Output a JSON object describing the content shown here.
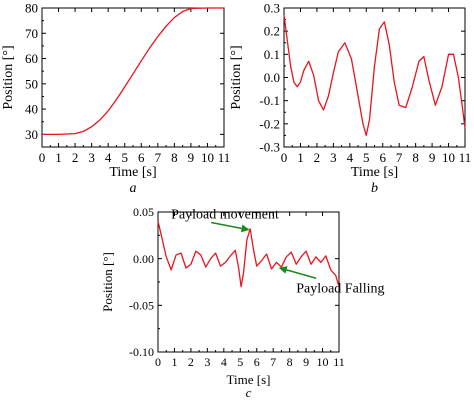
{
  "colors": {
    "curve": "#e8141e",
    "annotation_text": "#1a1ad6",
    "annotation_arrow": "#1a8a1a",
    "axes": "#000000"
  },
  "chart_data": [
    {
      "id": "a",
      "type": "line",
      "caption": "a",
      "xlabel": "Time [s]",
      "ylabel": "Position [°]",
      "xlim": [
        0,
        11
      ],
      "ylim": [
        25,
        80
      ],
      "xticks": [
        0,
        1,
        2,
        3,
        4,
        5,
        6,
        7,
        8,
        9,
        10,
        11
      ],
      "yticks": [
        30,
        40,
        50,
        60,
        70,
        80
      ],
      "ytick_labels": [
        "30",
        "40",
        "50",
        "60",
        "70",
        "80"
      ],
      "series": [
        {
          "x": [
            0,
            1,
            2,
            2.5,
            3,
            3.5,
            4,
            4.5,
            5,
            5.5,
            6,
            6.5,
            7,
            7.5,
            8,
            8.5,
            9,
            10,
            11
          ],
          "y": [
            30,
            30,
            30.3,
            31.2,
            33,
            35.7,
            39.3,
            43.8,
            48.8,
            53.9,
            59.1,
            64.1,
            68.7,
            72.8,
            76.2,
            78.6,
            79.8,
            80,
            80
          ]
        }
      ]
    },
    {
      "id": "b",
      "type": "line",
      "caption": "b",
      "xlabel": "Time [s]",
      "ylabel": "Position [°]",
      "xlim": [
        0,
        11
      ],
      "ylim": [
        -0.3,
        0.3
      ],
      "xticks": [
        0,
        1,
        2,
        3,
        4,
        5,
        6,
        7,
        8,
        9,
        10,
        11
      ],
      "yticks": [
        -0.3,
        -0.2,
        -0.1,
        0,
        0.1,
        0.2,
        0.3
      ],
      "ytick_labels": [
        "-0.3",
        "-0.2",
        "-0.1",
        "0.0",
        "0.1",
        "0.2",
        "0.3"
      ],
      "series": [
        {
          "x": [
            0,
            0.2,
            0.4,
            0.6,
            0.8,
            1.0,
            1.2,
            1.5,
            1.8,
            2.1,
            2.4,
            2.7,
            3.0,
            3.3,
            3.7,
            4.1,
            4.5,
            4.8,
            5.0,
            5.2,
            5.5,
            5.8,
            6.1,
            6.4,
            6.7,
            7.0,
            7.4,
            7.8,
            8.2,
            8.5,
            8.8,
            9.2,
            9.6,
            10.0,
            10.3,
            10.6,
            10.9,
            11.0
          ],
          "y": [
            0.27,
            0.16,
            0.05,
            -0.02,
            -0.04,
            -0.02,
            0.03,
            0.07,
            0.01,
            -0.1,
            -0.14,
            -0.08,
            0.02,
            0.11,
            0.15,
            0.08,
            -0.08,
            -0.2,
            -0.25,
            -0.18,
            0.05,
            0.21,
            0.24,
            0.14,
            -0.02,
            -0.12,
            -0.13,
            -0.04,
            0.07,
            0.09,
            -0.01,
            -0.12,
            -0.04,
            0.1,
            0.1,
            0.0,
            -0.16,
            -0.22
          ]
        }
      ]
    },
    {
      "id": "c",
      "type": "line",
      "caption": "c",
      "xlabel": "Time [s]",
      "ylabel": "Position [°]",
      "xlim": [
        0,
        11
      ],
      "ylim": [
        -0.1,
        0.05
      ],
      "xticks": [
        0,
        1,
        2,
        3,
        4,
        5,
        6,
        7,
        8,
        9,
        10,
        11
      ],
      "yticks": [
        -0.1,
        -0.05,
        0,
        0.05
      ],
      "ytick_labels": [
        "-0.10",
        "-0.05",
        "0.00",
        "0.05"
      ],
      "series": [
        {
          "x": [
            0,
            0.2,
            0.5,
            0.8,
            1.1,
            1.4,
            1.7,
            2.0,
            2.3,
            2.6,
            2.9,
            3.2,
            3.5,
            3.8,
            4.1,
            4.4,
            4.7,
            4.9,
            5.05,
            5.2,
            5.4,
            5.6,
            5.8,
            6.0,
            6.3,
            6.6,
            6.9,
            7.2,
            7.5,
            7.8,
            8.1,
            8.4,
            8.7,
            9.0,
            9.3,
            9.6,
            9.9,
            10.2,
            10.5,
            10.8,
            11.0
          ],
          "y": [
            0.04,
            0.025,
            0.002,
            -0.012,
            0.004,
            0.006,
            -0.01,
            -0.006,
            0.008,
            0.004,
            -0.009,
            0.0,
            0.006,
            -0.008,
            -0.004,
            0.003,
            0.009,
            -0.01,
            -0.03,
            -0.015,
            0.02,
            0.032,
            0.01,
            -0.008,
            -0.002,
            0.005,
            -0.011,
            -0.004,
            -0.009,
            0.002,
            0.007,
            -0.006,
            0.002,
            0.008,
            -0.006,
            0.002,
            -0.004,
            0.003,
            -0.012,
            -0.018,
            -0.03
          ]
        }
      ],
      "annotations": [
        {
          "text": "Payload movement",
          "arrow_to": {
            "x": 5.5,
            "y": 0.031
          },
          "label_at": {
            "x": 0.8,
            "y": 0.043
          }
        },
        {
          "text": "Payload Falling",
          "arrow_to": {
            "x": 7.4,
            "y": -0.01
          },
          "label_at": {
            "x": 8.4,
            "y": -0.036
          }
        }
      ]
    }
  ]
}
